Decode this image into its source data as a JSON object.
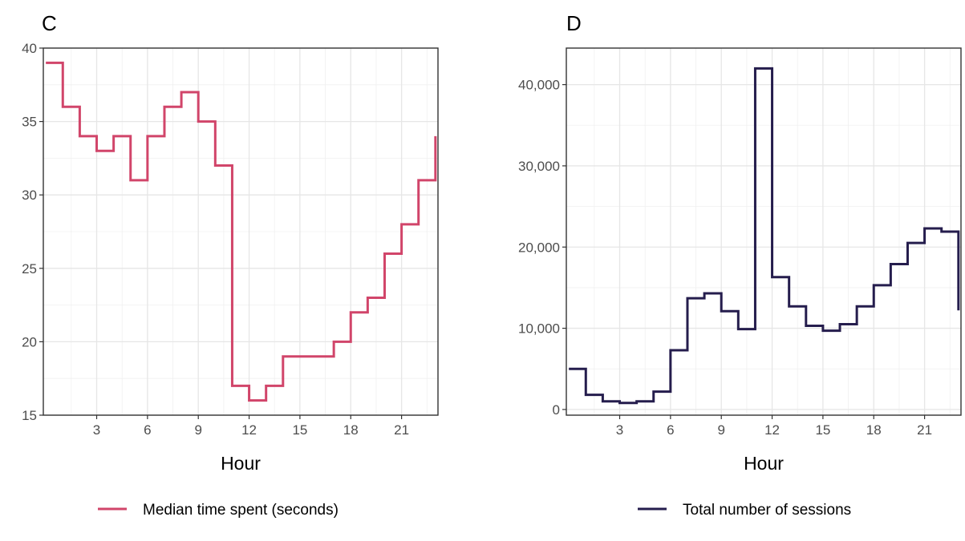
{
  "chart_data": [
    {
      "type": "line",
      "step": true,
      "panel_label": "C",
      "xlabel": "Hour",
      "ylabel": "",
      "x_ticks": [
        3,
        6,
        9,
        12,
        15,
        18,
        21
      ],
      "y_ticks": [
        15,
        20,
        25,
        30,
        35,
        40
      ],
      "xlim": [
        -0.15,
        23.15
      ],
      "ylim": [
        15,
        40
      ],
      "grid": true,
      "legend_position": "bottom",
      "color": "#d1456a",
      "series": [
        {
          "name": "Median time spent (seconds)",
          "x": [
            0,
            1,
            2,
            3,
            4,
            5,
            6,
            7,
            8,
            9,
            10,
            11,
            12,
            13,
            14,
            15,
            16,
            17,
            18,
            19,
            20,
            21,
            22,
            23
          ],
          "values": [
            39,
            36,
            34,
            33,
            34,
            31,
            34,
            36,
            37,
            35,
            32,
            17,
            16,
            17,
            19,
            19,
            19,
            20,
            22,
            23,
            26,
            28,
            31,
            34
          ]
        }
      ]
    },
    {
      "type": "line",
      "step": true,
      "panel_label": "D",
      "xlabel": "Hour",
      "ylabel": "",
      "x_ticks": [
        3,
        6,
        9,
        12,
        15,
        18,
        21
      ],
      "y_ticks": [
        0,
        10000,
        20000,
        30000,
        40000
      ],
      "y_tick_labels": [
        "0",
        "10,000",
        "20,000",
        "30,000",
        "40,000"
      ],
      "xlim": [
        -0.15,
        23.15
      ],
      "ylim": [
        -700,
        44500
      ],
      "grid": true,
      "legend_position": "bottom",
      "color": "#251d4d",
      "series": [
        {
          "name": "Total number of sessions",
          "x": [
            0,
            1,
            2,
            3,
            4,
            5,
            6,
            7,
            8,
            9,
            10,
            11,
            12,
            13,
            14,
            15,
            16,
            17,
            18,
            19,
            20,
            21,
            22,
            23
          ],
          "values": [
            5000,
            1800,
            1000,
            800,
            1000,
            2200,
            7300,
            13700,
            14300,
            12100,
            9900,
            42000,
            16300,
            12700,
            10300,
            9700,
            10500,
            12700,
            15300,
            17900,
            20500,
            22300,
            21900,
            12200
          ]
        }
      ]
    }
  ]
}
